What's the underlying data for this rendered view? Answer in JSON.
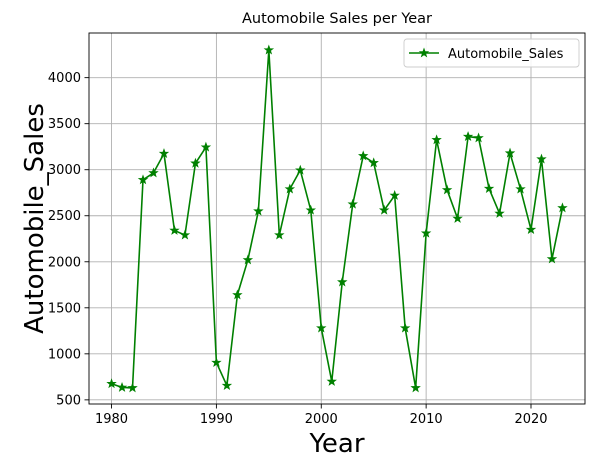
{
  "chart_data": {
    "type": "line",
    "title": "Automobile Sales per Year",
    "xlabel": "Year",
    "ylabel": "Automobile_Sales",
    "xlim": [
      1977.85,
      2025.15
    ],
    "ylim": [
      455,
      4485
    ],
    "xticks": [
      1980,
      1990,
      2000,
      2010,
      2020
    ],
    "yticks": [
      500,
      1000,
      1500,
      2000,
      2500,
      3000,
      3500,
      4000
    ],
    "grid": true,
    "legend_position": "upper right",
    "series": [
      {
        "name": "Automobile_Sales",
        "color": "#008000",
        "marker": "star",
        "x": [
          1980,
          1981,
          1982,
          1983,
          1984,
          1985,
          1986,
          1987,
          1988,
          1989,
          1990,
          1991,
          1992,
          1993,
          1994,
          1995,
          1996,
          1997,
          1998,
          1999,
          2000,
          2001,
          2002,
          2003,
          2004,
          2005,
          2006,
          2007,
          2008,
          2009,
          2010,
          2011,
          2012,
          2013,
          2014,
          2015,
          2016,
          2017,
          2018,
          2019,
          2020,
          2021,
          2022,
          2023
        ],
        "y": [
          675,
          635,
          630,
          2890,
          2965,
          3175,
          2340,
          2290,
          3070,
          3245,
          905,
          655,
          1640,
          2020,
          2550,
          4300,
          2290,
          2790,
          2995,
          2560,
          1280,
          700,
          1780,
          2625,
          3150,
          3075,
          2560,
          2720,
          1280,
          630,
          2310,
          3325,
          2780,
          2470,
          3360,
          3345,
          2795,
          2525,
          3180,
          2790,
          2350,
          3115,
          2030,
          2585
        ]
      }
    ]
  }
}
